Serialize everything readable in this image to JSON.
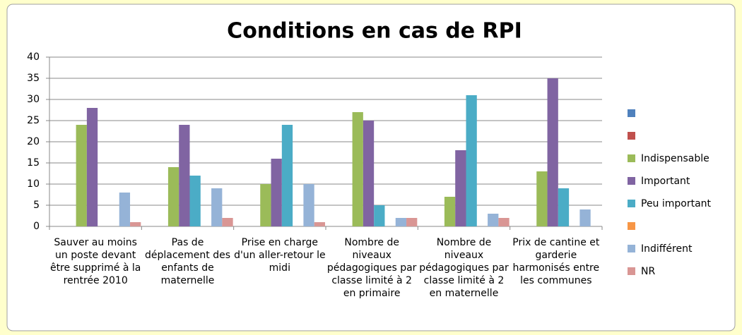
{
  "chart_data": {
    "type": "bar",
    "title": "Conditions en cas de RPI",
    "categories": [
      "Sauver au moins un poste devant être supprimé à la rentrée 2010",
      "Pas de déplacement des enfants de maternelle",
      "Prise en charge d'un aller-retour le midi",
      "Nombre de niveaux pédagogiques par classe limité à 2 en primaire",
      "Nombre de niveaux pédagogiques par classe limité à 2 en maternelle",
      "Prix de cantine et garderie harmonisés entre les communes"
    ],
    "series": [
      {
        "color": "#4f81bd",
        "values": [
          null,
          null,
          null,
          null,
          null,
          null
        ]
      },
      {
        "color": "#c0504d",
        "values": [
          null,
          null,
          null,
          null,
          null,
          null
        ]
      },
      {
        "name": "Indispensable",
        "color": "#9bbb59",
        "values": [
          24,
          14,
          10,
          27,
          7,
          13
        ]
      },
      {
        "name": "Important",
        "color": "#8064a2",
        "values": [
          28,
          24,
          16,
          25,
          18,
          35
        ]
      },
      {
        "name": "Peu important",
        "color": "#4bacc6",
        "values": [
          null,
          12,
          24,
          5,
          31,
          9
        ]
      },
      {
        "color": "#f79646",
        "values": [
          null,
          null,
          null,
          null,
          null,
          null
        ]
      },
      {
        "name": "Indifférent",
        "color": "#95b3d7",
        "values": [
          8,
          9,
          10,
          2,
          3,
          4
        ]
      },
      {
        "name": "NR",
        "color": "#d99694",
        "values": [
          1,
          2,
          1,
          2,
          2,
          null
        ]
      }
    ],
    "ylim": [
      0,
      40
    ],
    "yticks": [
      0,
      5,
      10,
      15,
      20,
      25,
      30,
      35,
      40
    ],
    "grid": true
  }
}
